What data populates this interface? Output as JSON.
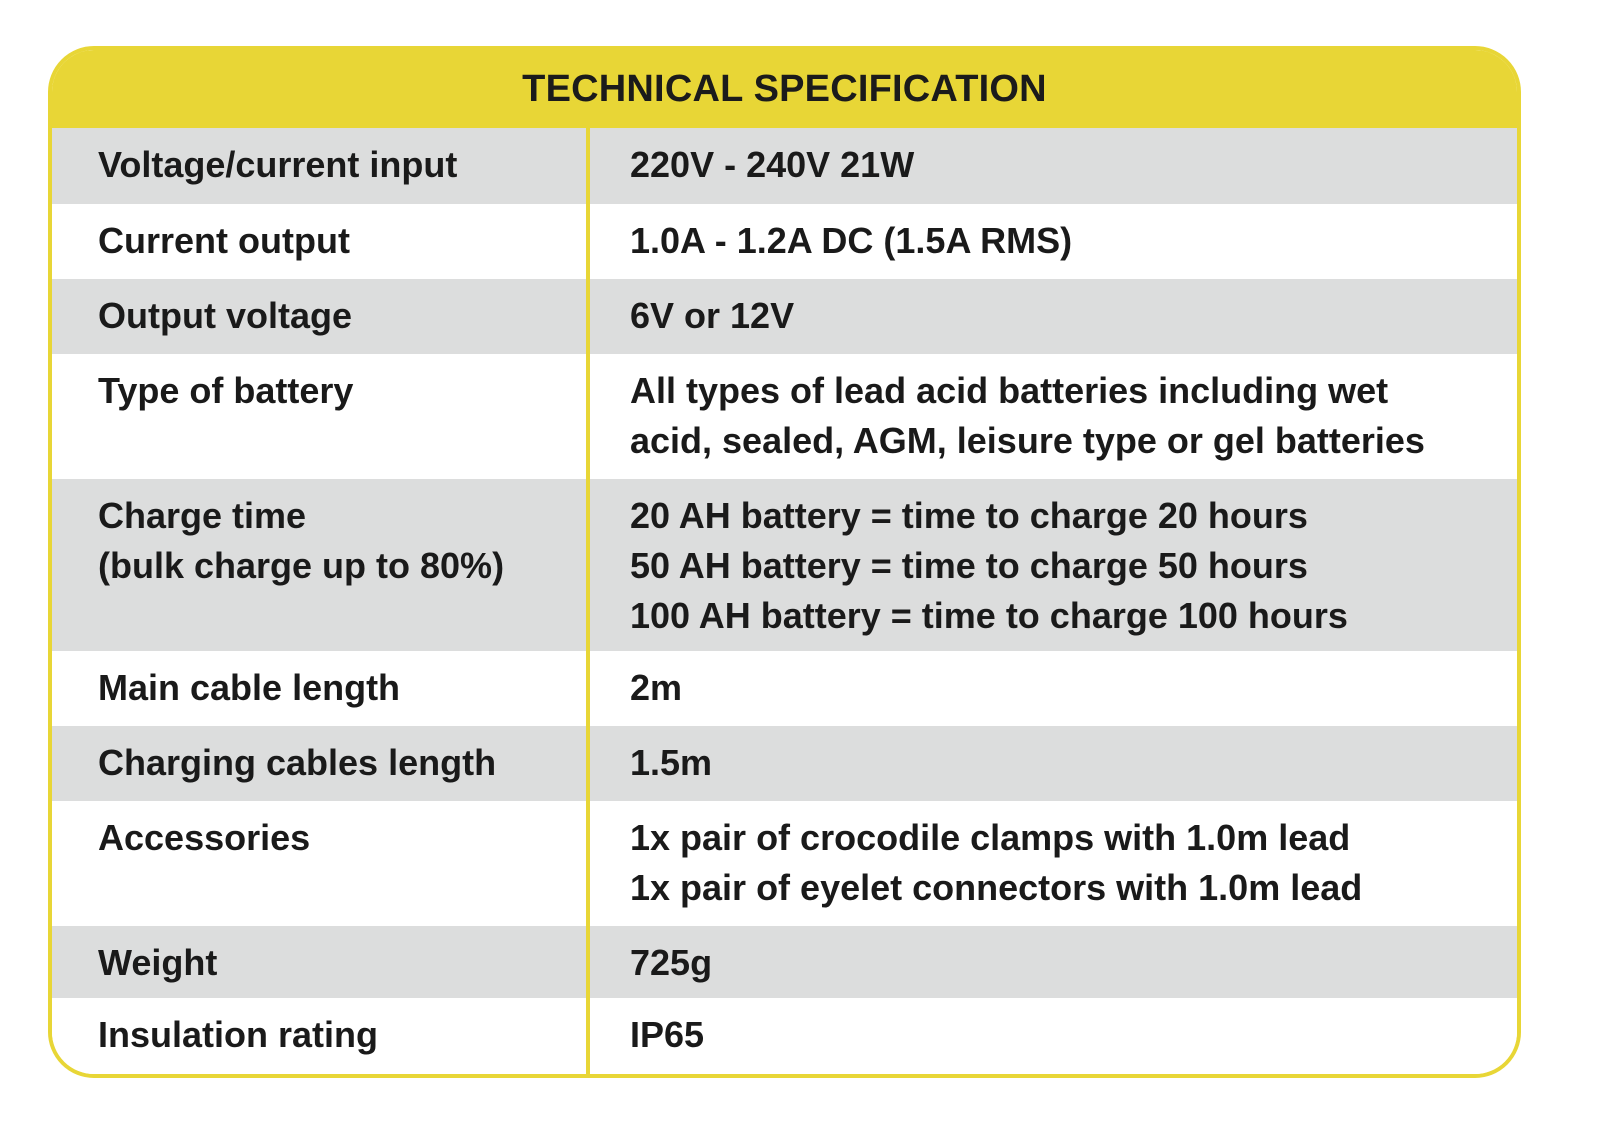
{
  "title": "TECHNICAL SPECIFICATION",
  "colors": {
    "accent": "#e8d636",
    "row_shade": "#dcdddd",
    "text": "#1a1a1a"
  },
  "rows": [
    {
      "label": [
        "Voltage/current input"
      ],
      "value": [
        "220V - 240V 21W"
      ]
    },
    {
      "label": [
        "Current output"
      ],
      "value": [
        "1.0A - 1.2A DC (1.5A RMS)"
      ]
    },
    {
      "label": [
        "Output voltage"
      ],
      "value": [
        "6V or 12V"
      ]
    },
    {
      "label": [
        "Type of battery"
      ],
      "value": [
        "All types of lead acid batteries including wet",
        "acid, sealed, AGM, leisure type or gel batteries"
      ]
    },
    {
      "label": [
        "Charge time",
        "(bulk charge up to 80%)"
      ],
      "value": [
        "20 AH battery = time to charge 20 hours",
        "50 AH battery = time to charge 50 hours",
        "100 AH battery = time to charge 100 hours"
      ]
    },
    {
      "label": [
        "Main cable length"
      ],
      "value": [
        "2m"
      ]
    },
    {
      "label": [
        "Charging cables length"
      ],
      "value": [
        "1.5m"
      ]
    },
    {
      "label": [
        "Accessories"
      ],
      "value": [
        "1x pair of crocodile clamps with 1.0m lead",
        "1x pair of eyelet connectors with 1.0m lead"
      ]
    },
    {
      "label": [
        "Weight"
      ],
      "value": [
        "725g"
      ]
    },
    {
      "label": [
        "Insulation rating"
      ],
      "value": [
        "IP65"
      ]
    }
  ]
}
